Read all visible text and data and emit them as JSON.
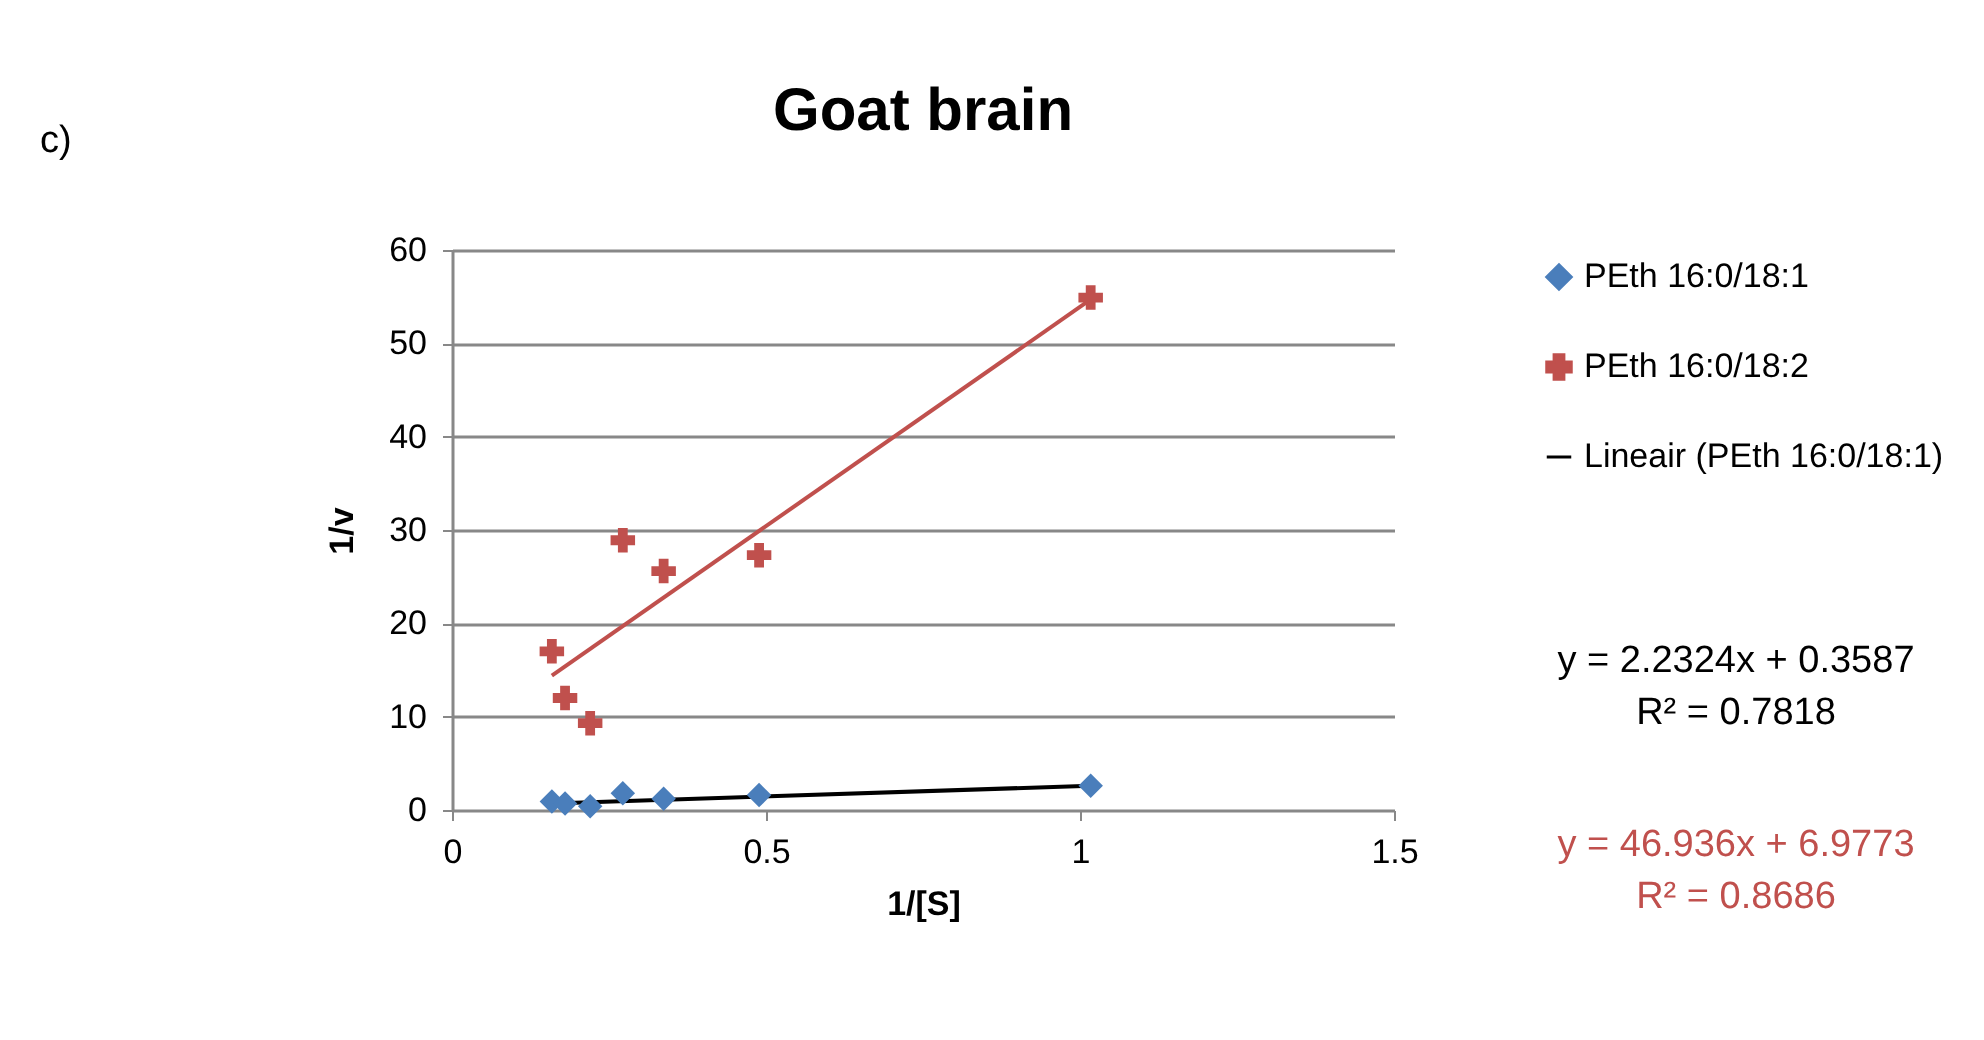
{
  "chart_data": {
    "type": "scatter",
    "title": "Goat brain",
    "xlabel": "1/[S]",
    "ylabel": "1/v",
    "series": [
      {
        "name": "PEth 16:0/18:1",
        "color": "#4a7ebb",
        "marker": "diamond",
        "x": [
          0.159,
          0.18,
          0.22,
          0.272,
          0.337,
          0.489,
          1.017
        ],
        "values": [
          0.9,
          0.7,
          0.4,
          1.8,
          1.2,
          1.6,
          2.6
        ]
      },
      {
        "name": "PEth 16:0/18:2",
        "color": "#c0504d",
        "marker": "cross",
        "x": [
          0.159,
          0.18,
          0.22,
          0.272,
          0.337,
          0.489,
          1.017
        ],
        "values": [
          17.0,
          12.0,
          9.3,
          28.9,
          25.6,
          27.3,
          54.9
        ]
      },
      {
        "name": "Lineair (PEth 16:0/18:1)",
        "type": "line",
        "color": "#000000",
        "marker": "none",
        "x": [
          0.159,
          1.017
        ],
        "values": [
          0.7,
          2.6
        ]
      },
      {
        "type": "line",
        "color": "#c0504d",
        "marker": "none",
        "x": [
          0.159,
          1.017
        ],
        "values": [
          14.4,
          54.7
        ]
      }
    ],
    "xlim": [
      0,
      1.5
    ],
    "xticks": [
      0,
      0.5,
      1,
      1.5
    ],
    "ylim": [
      0,
      60
    ],
    "yticks": [
      0,
      10,
      20,
      30,
      40,
      50,
      60
    ],
    "grid": "y",
    "legend": "right",
    "annotations": [
      "c)",
      "y = 2.2324x + 0.3587",
      "R² = 0.7818",
      "y = 46.936x + 6.9773",
      "R² = 0.8686"
    ]
  }
}
